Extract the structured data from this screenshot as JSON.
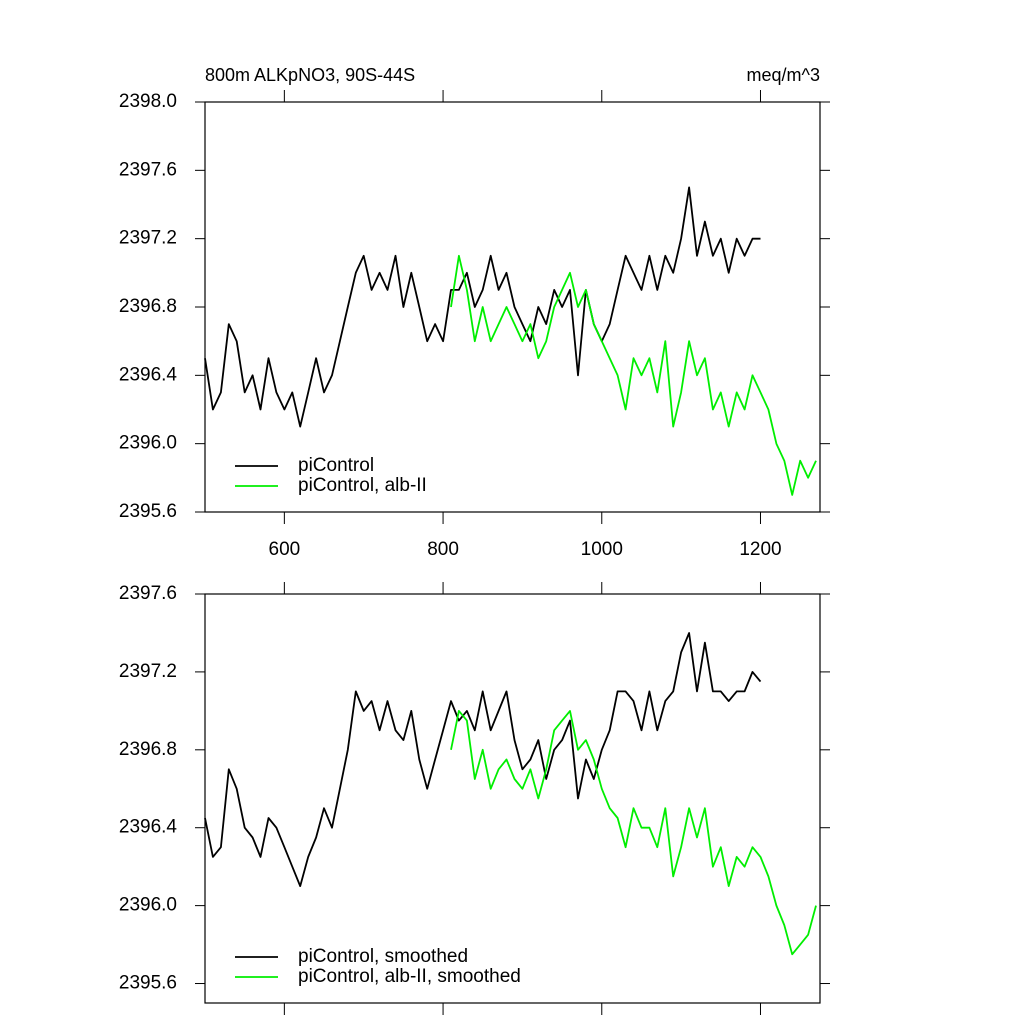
{
  "chart_data": [
    {
      "type": "line",
      "title": "800m ALKpNO3, 90S-44S",
      "units": "meq/m^3",
      "xlim": [
        500,
        1275
      ],
      "xticks": [
        600,
        800,
        1000,
        1200
      ],
      "ylim": [
        2395.6,
        2398.0
      ],
      "yticks": [
        {
          "value": 2395.6,
          "label": "2395.6"
        },
        {
          "value": 2396.0,
          "label": "2396.0"
        },
        {
          "value": 2396.4,
          "label": "2396.4"
        },
        {
          "value": 2396.8,
          "label": "2396.8"
        },
        {
          "value": 2397.2,
          "label": "2397.2"
        },
        {
          "value": 2397.6,
          "label": "2397.6"
        },
        {
          "value": 2398.0,
          "label": "2398.0"
        }
      ],
      "series": [
        {
          "name": "piControl",
          "color": "#000000",
          "x": [
            500,
            510,
            520,
            530,
            540,
            550,
            560,
            570,
            580,
            590,
            600,
            610,
            620,
            630,
            640,
            650,
            660,
            670,
            680,
            690,
            700,
            710,
            720,
            730,
            740,
            750,
            760,
            770,
            780,
            790,
            800,
            810,
            820,
            830,
            840,
            850,
            860,
            870,
            880,
            890,
            900,
            910,
            920,
            930,
            940,
            950,
            960,
            970,
            980,
            990,
            1000,
            1010,
            1020,
            1030,
            1040,
            1050,
            1060,
            1070,
            1080,
            1090,
            1100,
            1110,
            1120,
            1130,
            1140,
            1150,
            1160,
            1170,
            1180,
            1190,
            1200
          ],
          "values": [
            2396.5,
            2396.2,
            2396.3,
            2396.7,
            2396.6,
            2396.3,
            2396.4,
            2396.2,
            2396.5,
            2396.3,
            2396.2,
            2396.3,
            2396.1,
            2396.3,
            2396.5,
            2396.3,
            2396.4,
            2396.6,
            2396.8,
            2397.0,
            2397.1,
            2396.9,
            2397.0,
            2396.9,
            2397.1,
            2396.8,
            2397.0,
            2396.8,
            2396.6,
            2396.7,
            2396.6,
            2396.9,
            2396.9,
            2397.0,
            2396.8,
            2396.9,
            2397.1,
            2396.9,
            2397.0,
            2396.8,
            2396.7,
            2396.6,
            2396.8,
            2396.7,
            2396.9,
            2396.8,
            2396.9,
            2396.4,
            2396.9,
            2396.7,
            2396.6,
            2396.7,
            2396.9,
            2397.1,
            2397.0,
            2396.9,
            2397.1,
            2396.9,
            2397.1,
            2397.0,
            2397.2,
            2397.5,
            2397.1,
            2397.3,
            2397.1,
            2397.2,
            2397.0,
            2397.2,
            2397.1,
            2397.2,
            2397.2
          ]
        },
        {
          "name": "piControl, alb-II",
          "color": "#00ee00",
          "x": [
            810,
            820,
            830,
            840,
            850,
            860,
            870,
            880,
            890,
            900,
            910,
            920,
            930,
            940,
            950,
            960,
            970,
            980,
            990,
            1000,
            1010,
            1020,
            1030,
            1040,
            1050,
            1060,
            1070,
            1080,
            1090,
            1100,
            1110,
            1120,
            1130,
            1140,
            1150,
            1160,
            1170,
            1180,
            1190,
            1200,
            1210,
            1220,
            1230,
            1240,
            1250,
            1260,
            1270
          ],
          "values": [
            2396.8,
            2397.1,
            2396.9,
            2396.6,
            2396.8,
            2396.6,
            2396.7,
            2396.8,
            2396.7,
            2396.6,
            2396.7,
            2396.5,
            2396.6,
            2396.8,
            2396.9,
            2397.0,
            2396.8,
            2396.9,
            2396.7,
            2396.6,
            2396.5,
            2396.4,
            2396.2,
            2396.5,
            2396.4,
            2396.5,
            2396.3,
            2396.6,
            2396.1,
            2396.3,
            2396.6,
            2396.4,
            2396.5,
            2396.2,
            2396.3,
            2396.1,
            2396.3,
            2396.2,
            2396.4,
            2396.3,
            2396.2,
            2396.0,
            2395.9,
            2395.7,
            2395.9,
            2395.8,
            2395.9
          ]
        }
      ]
    },
    {
      "type": "line",
      "xlim": [
        500,
        1275
      ],
      "xticks": [
        600,
        800,
        1000,
        1200
      ],
      "ylim": [
        2395.5,
        2397.6
      ],
      "yticks": [
        {
          "value": 2395.6,
          "label": "2395.6"
        },
        {
          "value": 2396.0,
          "label": "2396.0"
        },
        {
          "value": 2396.4,
          "label": "2396.4"
        },
        {
          "value": 2396.8,
          "label": "2396.8"
        },
        {
          "value": 2397.2,
          "label": "2397.2"
        },
        {
          "value": 2397.6,
          "label": "2397.6"
        }
      ],
      "series": [
        {
          "name": "piControl, smoothed",
          "color": "#000000",
          "x": [
            500,
            510,
            520,
            530,
            540,
            550,
            560,
            570,
            580,
            590,
            600,
            610,
            620,
            630,
            640,
            650,
            660,
            670,
            680,
            690,
            700,
            710,
            720,
            730,
            740,
            750,
            760,
            770,
            780,
            790,
            800,
            810,
            820,
            830,
            840,
            850,
            860,
            870,
            880,
            890,
            900,
            910,
            920,
            930,
            940,
            950,
            960,
            970,
            980,
            990,
            1000,
            1010,
            1020,
            1030,
            1040,
            1050,
            1060,
            1070,
            1080,
            1090,
            1100,
            1110,
            1120,
            1130,
            1140,
            1150,
            1160,
            1170,
            1180,
            1190,
            1200
          ],
          "values": [
            2396.45,
            2396.25,
            2396.3,
            2396.7,
            2396.6,
            2396.4,
            2396.35,
            2396.25,
            2396.45,
            2396.4,
            2396.3,
            2396.2,
            2396.1,
            2396.25,
            2396.35,
            2396.5,
            2396.4,
            2396.6,
            2396.8,
            2397.1,
            2397.0,
            2397.05,
            2396.9,
            2397.05,
            2396.9,
            2396.85,
            2397.0,
            2396.75,
            2396.6,
            2396.75,
            2396.9,
            2397.05,
            2396.95,
            2397.0,
            2396.9,
            2397.1,
            2396.9,
            2397.0,
            2397.1,
            2396.85,
            2396.7,
            2396.75,
            2396.85,
            2396.65,
            2396.8,
            2396.85,
            2396.95,
            2396.55,
            2396.75,
            2396.65,
            2396.8,
            2396.9,
            2397.1,
            2397.1,
            2397.05,
            2396.9,
            2397.1,
            2396.9,
            2397.05,
            2397.1,
            2397.3,
            2397.4,
            2397.1,
            2397.35,
            2397.1,
            2397.1,
            2397.05,
            2397.1,
            2397.1,
            2397.2,
            2397.15
          ]
        },
        {
          "name": "piControl, alb-II, smoothed",
          "color": "#00ee00",
          "x": [
            810,
            820,
            830,
            840,
            850,
            860,
            870,
            880,
            890,
            900,
            910,
            920,
            930,
            940,
            950,
            960,
            970,
            980,
            990,
            1000,
            1010,
            1020,
            1030,
            1040,
            1050,
            1060,
            1070,
            1080,
            1090,
            1100,
            1110,
            1120,
            1130,
            1140,
            1150,
            1160,
            1170,
            1180,
            1190,
            1200,
            1210,
            1220,
            1230,
            1240,
            1250,
            1260,
            1270
          ],
          "values": [
            2396.8,
            2397.0,
            2396.95,
            2396.65,
            2396.8,
            2396.6,
            2396.7,
            2396.75,
            2396.65,
            2396.6,
            2396.7,
            2396.55,
            2396.7,
            2396.9,
            2396.95,
            2397.0,
            2396.8,
            2396.85,
            2396.75,
            2396.6,
            2396.5,
            2396.45,
            2396.3,
            2396.5,
            2396.4,
            2396.4,
            2396.3,
            2396.5,
            2396.15,
            2396.3,
            2396.5,
            2396.35,
            2396.5,
            2396.2,
            2396.3,
            2396.1,
            2396.25,
            2396.2,
            2396.3,
            2396.25,
            2396.15,
            2396.0,
            2395.9,
            2395.75,
            2395.8,
            2395.85,
            2396.0
          ]
        }
      ]
    }
  ]
}
